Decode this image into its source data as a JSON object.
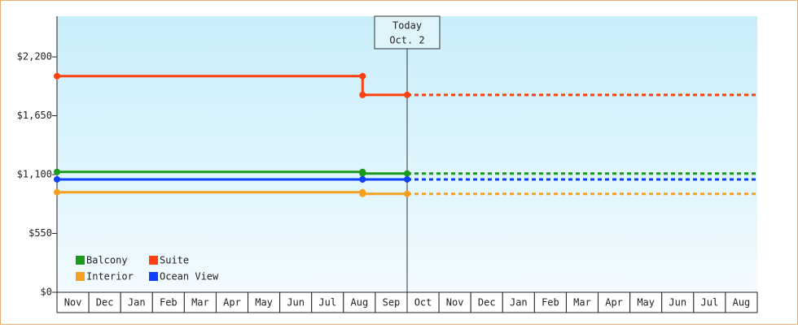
{
  "chart_data": {
    "type": "step-line",
    "categories": [
      "Nov",
      "Dec",
      "Jan",
      "Feb",
      "Mar",
      "Apr",
      "May",
      "Jun",
      "Jul",
      "Aug",
      "Sep",
      "Oct",
      "Nov",
      "Dec",
      "Jan",
      "Feb",
      "Mar",
      "Apr",
      "May",
      "Jun",
      "Jul",
      "Aug"
    ],
    "xlim": [
      0,
      22
    ],
    "x": [
      0,
      9.6,
      9.6,
      11
    ],
    "series": [
      {
        "name": "Balcony",
        "color": "#1a9a1a",
        "values": [
          1125,
          1125,
          1110,
          1110
        ]
      },
      {
        "name": "Suite",
        "color": "#ff4010",
        "values": [
          2020,
          2020,
          1845,
          1845
        ]
      },
      {
        "name": "Interior",
        "color": "#f5a020",
        "values": [
          935,
          935,
          920,
          920
        ]
      },
      {
        "name": "Ocean View",
        "color": "#1040ff",
        "values": [
          1055,
          1055,
          1055,
          1055
        ]
      }
    ],
    "ylim": [
      0,
      2580
    ],
    "yticks": [
      {
        "value": 0,
        "label": "$0"
      },
      {
        "value": 550,
        "label": "$550"
      },
      {
        "value": 1100,
        "label": "$1,100"
      },
      {
        "value": 1650,
        "label": "$1,650"
      },
      {
        "value": 2200,
        "label": "$2,200"
      }
    ],
    "annotation": {
      "lines": [
        "Today",
        "Oct. 2"
      ],
      "x": 11
    },
    "projection": "dashed",
    "legend": "lower left"
  }
}
